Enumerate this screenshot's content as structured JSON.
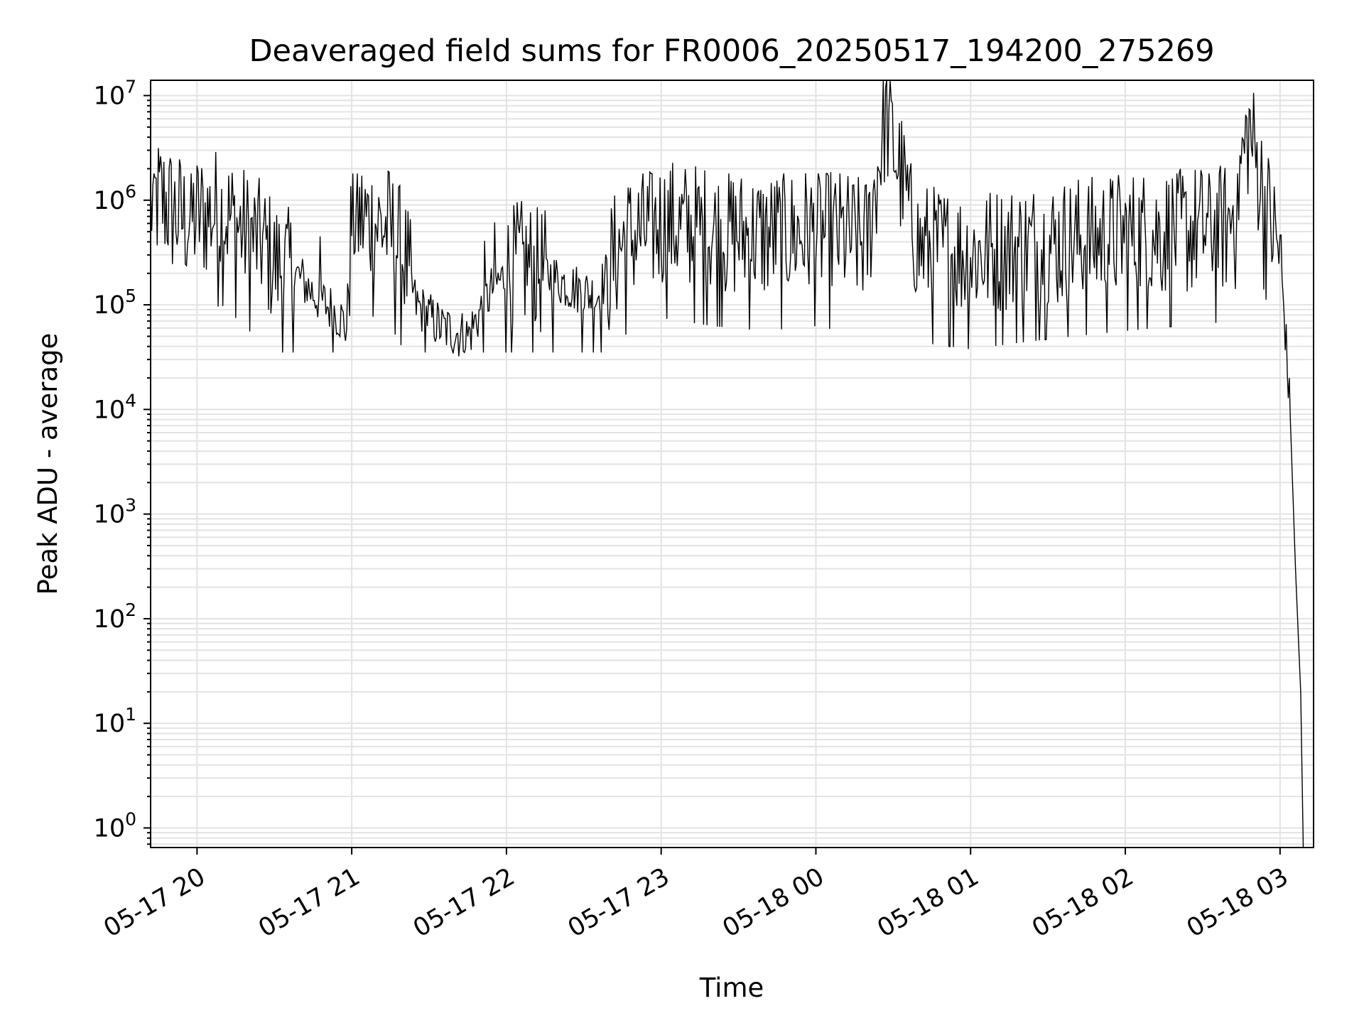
{
  "chart_data": {
    "type": "line",
    "title": "Deaveraged field sums for FR0006_20250517_194200_275269",
    "xlabel": "Time",
    "ylabel": "Peak ADU - average",
    "yscale": "log",
    "ylim": [
      0.65,
      14000000
    ],
    "xlim": [
      "2025-05-17 19:42",
      "2025-05-18 03:13"
    ],
    "grid": "both",
    "x_tick_labels": [
      "05-17 20",
      "05-17 21",
      "05-17 22",
      "05-17 23",
      "05-18 00",
      "05-18 01",
      "05-18 02",
      "05-18 03"
    ],
    "x_tick_times": [
      "2025-05-17 20:00",
      "2025-05-17 21:00",
      "2025-05-17 22:00",
      "2025-05-17 23:00",
      "2025-05-18 00:00",
      "2025-05-18 01:00",
      "2025-05-18 02:00",
      "2025-05-18 03:00"
    ],
    "y_tick_labels": [
      {
        "base": "10",
        "exp": "0",
        "value": 1
      },
      {
        "base": "10",
        "exp": "1",
        "value": 10
      },
      {
        "base": "10",
        "exp": "2",
        "value": 100
      },
      {
        "base": "10",
        "exp": "3",
        "value": 1000
      },
      {
        "base": "10",
        "exp": "4",
        "value": 10000
      },
      {
        "base": "10",
        "exp": "5",
        "value": 100000
      },
      {
        "base": "10",
        "exp": "6",
        "value": 1000000
      },
      {
        "base": "10",
        "exp": "7",
        "value": 10000000
      }
    ],
    "series": [
      {
        "color": "#000000",
        "points": [
          [
            "2025-05-17 19:42",
            900000
          ],
          [
            "2025-05-17 19:45",
            1000000
          ],
          [
            "2025-05-17 19:48",
            950000
          ],
          [
            "2025-05-17 19:50",
            800000
          ],
          [
            "2025-05-17 19:55",
            650000
          ],
          [
            "2025-05-17 20:00",
            700000
          ],
          [
            "2025-05-17 20:05",
            750000
          ],
          [
            "2025-05-17 20:10",
            780000
          ],
          [
            "2025-05-17 20:15",
            600000
          ],
          [
            "2025-05-17 20:20",
            450000
          ],
          [
            "2025-05-17 20:25",
            400000
          ],
          [
            "2025-05-17 20:30",
            250000
          ],
          [
            "2025-05-17 20:35",
            220000
          ],
          [
            "2025-05-17 20:40",
            180000
          ],
          [
            "2025-05-17 20:45",
            130000
          ],
          [
            "2025-05-17 20:50",
            100000
          ],
          [
            "2025-05-17 20:55",
            80000
          ],
          [
            "2025-05-17 20:58",
            60000
          ],
          [
            "2025-05-17 21:00",
            700000
          ],
          [
            "2025-05-17 21:10",
            600000
          ],
          [
            "2025-05-17 21:15",
            500000
          ],
          [
            "2025-05-17 21:20",
            300000
          ],
          [
            "2025-05-17 21:25",
            100000
          ],
          [
            "2025-05-17 21:35",
            60000
          ],
          [
            "2025-05-17 21:45",
            50000
          ],
          [
            "2025-05-17 21:55",
            150000
          ],
          [
            "2025-05-17 22:05",
            250000
          ],
          [
            "2025-05-17 22:15",
            200000
          ],
          [
            "2025-05-17 22:25",
            150000
          ],
          [
            "2025-05-17 22:35",
            120000
          ],
          [
            "2025-05-17 22:45",
            400000
          ],
          [
            "2025-05-17 23:00",
            600000
          ],
          [
            "2025-05-17 23:20",
            500000
          ],
          [
            "2025-05-17 23:40",
            450000
          ],
          [
            "2025-05-18 00:00",
            500000
          ],
          [
            "2025-05-18 00:20",
            400000
          ],
          [
            "2025-05-18 00:27",
            6700000
          ],
          [
            "2025-05-18 00:40",
            350000
          ],
          [
            "2025-05-18 01:00",
            300000
          ],
          [
            "2025-05-18 01:20",
            350000
          ],
          [
            "2025-05-18 01:40",
            400000
          ],
          [
            "2025-05-18 02:00",
            450000
          ],
          [
            "2025-05-18 02:20",
            500000
          ],
          [
            "2025-05-18 02:40",
            550000
          ],
          [
            "2025-05-18 02:48",
            4800000
          ],
          [
            "2025-05-18 02:55",
            800000
          ],
          [
            "2025-05-18 03:00",
            300000
          ],
          [
            "2025-05-18 03:02",
            60000
          ],
          [
            "2025-05-18 03:04",
            8000
          ],
          [
            "2025-05-18 03:06",
            300
          ],
          [
            "2025-05-18 03:08",
            20
          ],
          [
            "2025-05-18 03:09",
            0.65
          ]
        ]
      }
    ]
  }
}
